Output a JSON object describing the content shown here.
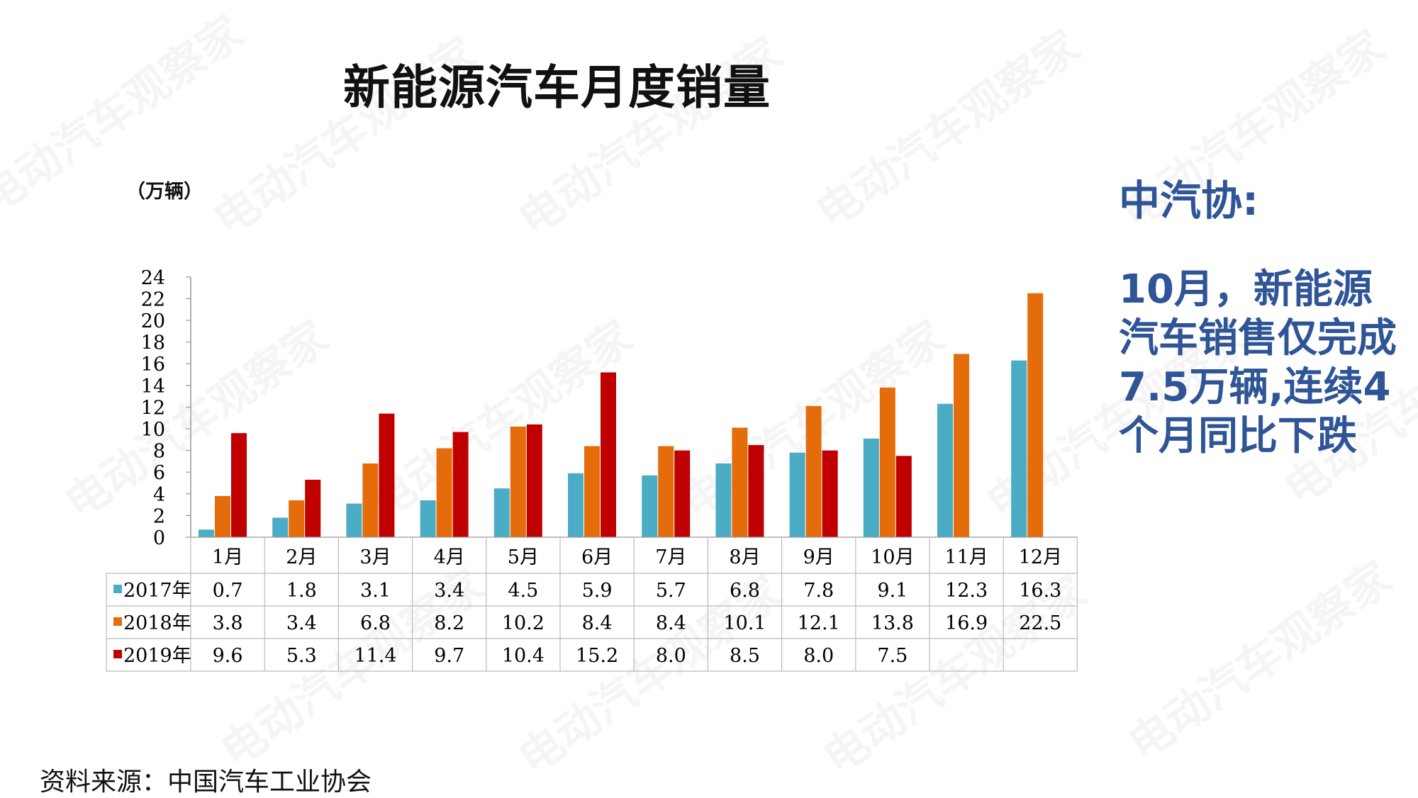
{
  "title": "新能源汽车月度销量",
  "side_note": {
    "heading": "中汽协:",
    "body": "10月，新能源汽车销售仅完成7.5万辆,连续4个月同比下跌"
  },
  "source": "资料来源：中国汽车工业协会",
  "watermark": "电动汽车观察家",
  "colors": {
    "s2017": "#4bacc6",
    "s2018": "#e46c0a",
    "s2019": "#c00000",
    "side_text": "#2f5597"
  },
  "chart_data": {
    "type": "bar",
    "ylabel": "（万辆）",
    "ylim": [
      0,
      24
    ],
    "yticks": [
      0,
      2,
      4,
      6,
      8,
      10,
      12,
      14,
      16,
      18,
      20,
      22,
      24
    ],
    "grid": false,
    "legend": "data-table rows",
    "categories": [
      "1月",
      "2月",
      "3月",
      "4月",
      "5月",
      "6月",
      "7月",
      "8月",
      "9月",
      "10月",
      "11月",
      "12月"
    ],
    "series": [
      {
        "name": "2017年",
        "values": [
          0.7,
          1.8,
          3.1,
          3.4,
          4.5,
          5.9,
          5.7,
          6.8,
          7.8,
          9.1,
          12.3,
          16.3
        ]
      },
      {
        "name": "2018年",
        "values": [
          3.8,
          3.4,
          6.8,
          8.2,
          10.2,
          8.4,
          8.4,
          10.1,
          12.1,
          13.8,
          16.9,
          22.5
        ]
      },
      {
        "name": "2019年",
        "values": [
          9.6,
          5.3,
          11.4,
          9.7,
          10.4,
          15.2,
          8.0,
          8.5,
          8.0,
          7.5,
          null,
          null
        ]
      }
    ],
    "table_cells": [
      [
        "0.7",
        "1.8",
        "3.1",
        "3.4",
        "4.5",
        "5.9",
        "5.7",
        "6.8",
        "7.8",
        "9.1",
        "12.3",
        "16.3"
      ],
      [
        "3.8",
        "3.4",
        "6.8",
        "8.2",
        "10.2",
        "8.4",
        "8.4",
        "10.1",
        "12.1",
        "13.8",
        "16.9",
        "22.5"
      ],
      [
        "9.6",
        "5.3",
        "11.4",
        "9.7",
        "10.4",
        "15.2",
        "8.0",
        "8.5",
        "8.0",
        "7.5",
        "",
        ""
      ]
    ]
  }
}
